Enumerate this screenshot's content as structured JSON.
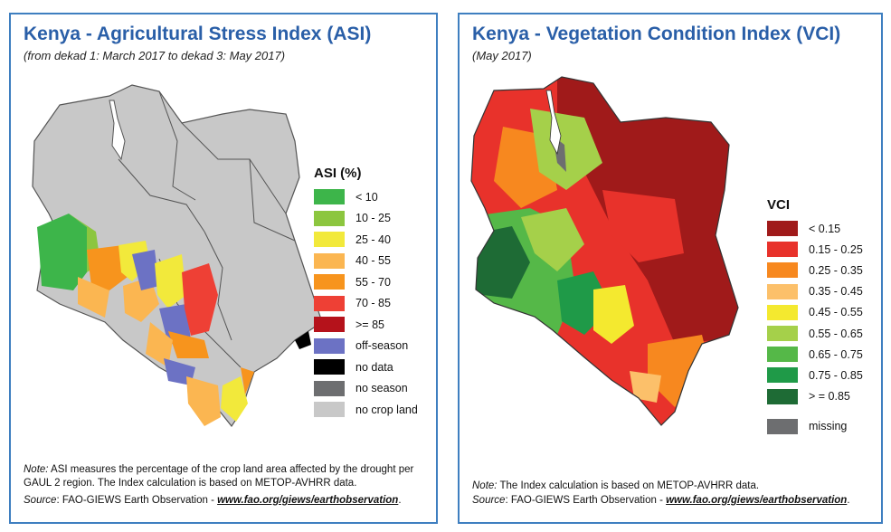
{
  "asi_panel": {
    "title": "Kenya - Agricultural Stress Index (ASI)",
    "subtitle": "(from dekad 1:  March 2017 to dekad 3:  May 2017)",
    "legend": {
      "title": "ASI (%)",
      "items": [
        {
          "label": "< 10",
          "color": "#3db54a"
        },
        {
          "label": "10 - 25",
          "color": "#8cc63f"
        },
        {
          "label": "25 - 40",
          "color": "#f2e93b"
        },
        {
          "label": "40 - 55",
          "color": "#fbb651"
        },
        {
          "label": "55 - 70",
          "color": "#f7941d"
        },
        {
          "label": "70 - 85",
          "color": "#ee4035"
        },
        {
          "label": ">= 85",
          "color": "#b5121b"
        },
        {
          "label": "off-season",
          "color": "#6c72c4"
        },
        {
          "label": "no data",
          "color": "#000000"
        },
        {
          "label": "no season",
          "color": "#6d6e70"
        },
        {
          "label": "no crop land",
          "color": "#c8c8c8"
        }
      ]
    },
    "note_label": "Note:",
    "note_text": " ASI measures the percentage of the crop land area affected by the drought per GAUL 2 region.  The Index calculation is based on METOP-AVHRR data.",
    "source_label": "Source",
    "source_text": ": FAO-GIEWS Earth Observation - ",
    "source_link": "www.fao.org/giews/earthobservation",
    "source_end": "."
  },
  "vci_panel": {
    "title": "Kenya - Vegetation Condition Index (VCI)",
    "subtitle": "(May 2017)",
    "legend": {
      "title": "VCI",
      "items": [
        {
          "label": "< 0.15",
          "color": "#a01a1a"
        },
        {
          "label": "0.15 - 0.25",
          "color": "#e8322b"
        },
        {
          "label": "0.25 - 0.35",
          "color": "#f7881f"
        },
        {
          "label": "0.35 - 0.45",
          "color": "#fcc06a"
        },
        {
          "label": "0.45 - 0.55",
          "color": "#f4e92f"
        },
        {
          "label": "0.55 - 0.65",
          "color": "#a5d04a"
        },
        {
          "label": "0.65 - 0.75",
          "color": "#55b848"
        },
        {
          "label": "0.75 - 0.85",
          "color": "#1f9a48"
        },
        {
          "label": "> = 0.85",
          "color": "#1e6b35"
        }
      ],
      "missing": {
        "label": "missing",
        "color": "#6d6e70"
      }
    },
    "note_label": "Note:",
    "note_text": " The Index calculation is based on METOP-AVHRR data.",
    "source_label": "Source",
    "source_text": ": FAO-GIEWS Earth Observation - ",
    "source_link": "www.fao.org/giews/earthobservation",
    "source_end": "."
  }
}
